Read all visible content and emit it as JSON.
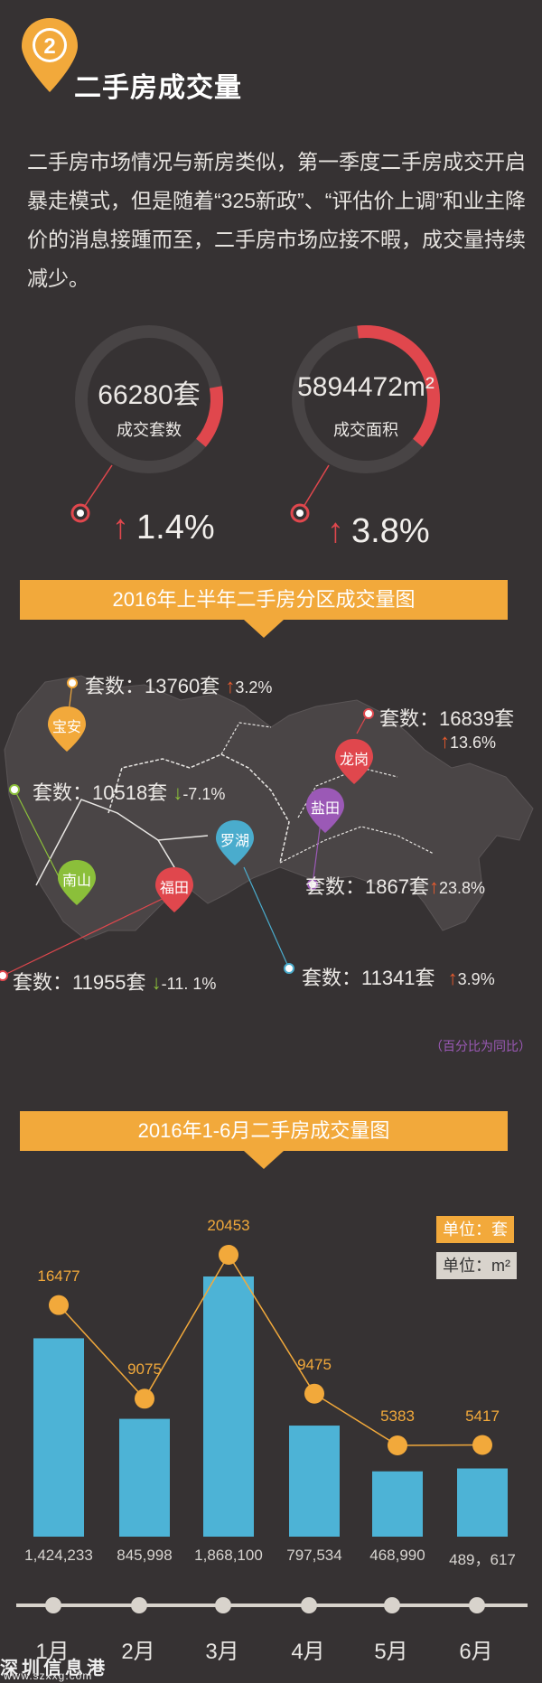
{
  "header": {
    "badge_number": "2",
    "title": "二手房成交量"
  },
  "intro": "二手房市场情况与新房类似，第一季度二手房成交开启暴走模式，但是随着“325新政”、“评估价上调”和业主降价的消息接踵而至，二手房市场应接不暇，成交量持续减少。",
  "stats": [
    {
      "value": "66280套",
      "label": "成交套数",
      "growth": "1.4%",
      "ring_fill": 0.014
    },
    {
      "value": "5894472m²",
      "label": "成交面积",
      "growth": "3.8%",
      "ring_fill": 0.038
    }
  ],
  "district_section": {
    "banner": "2016年上半年二手房分区成交量图",
    "districts": [
      {
        "name": "宝安",
        "stat": "套数：13760套",
        "arrow": "↑",
        "pct": "3.2%",
        "trend": "up",
        "color": "#f2a93b"
      },
      {
        "name": "龙岗",
        "stat": "套数：16839套",
        "arrow": "↑",
        "pct": "13.6%",
        "trend": "up",
        "color": "#e0474d"
      },
      {
        "name": "宝安-南山",
        "stat": "套数：10518套",
        "arrow": "↓",
        "pct": "-7.1%",
        "trend": "down",
        "color": "#8bbf3a"
      },
      {
        "name": "盐田",
        "stat": "套数：1867套",
        "arrow": "↑",
        "pct": "23.8%",
        "trend": "up",
        "color": "#9b59b6"
      },
      {
        "name": "福田",
        "stat": "套数：11955套",
        "arrow": "↓",
        "pct": "-11. 1%",
        "trend": "down",
        "color": "#e0474d"
      },
      {
        "name": "罗湖",
        "stat": "套数：11341套",
        "arrow": "↑",
        "pct": "3.9%",
        "trend": "up",
        "color": "#4aaccd"
      }
    ],
    "pin_labels": {
      "baoan": "宝安",
      "longgang": "龙岗",
      "yantian": "盐田",
      "luohu": "罗湖",
      "nanshan": "南山",
      "futian": "福田"
    },
    "note": "（百分比为同比）"
  },
  "monthly_section": {
    "banner": "2016年1-6月二手房成交量图",
    "unit_count": "单位：套",
    "unit_area": "单位：m²"
  },
  "chart_data": {
    "type": "bar",
    "title": "2016年1-6月二手房成交量图",
    "categories": [
      "1月",
      "2月",
      "3月",
      "4月",
      "5月",
      "6月"
    ],
    "series": [
      {
        "name": "单位：m²",
        "type": "bar",
        "values": [
          1424233,
          845998,
          1868100,
          797534,
          468990,
          489617
        ],
        "labels": [
          "1,424,233",
          "845,998",
          "1,868,100",
          "797,534",
          "468,990",
          "489，617"
        ],
        "color": "#4db3d6"
      },
      {
        "name": "单位：套",
        "type": "line",
        "values": [
          16477,
          9075,
          20453,
          9475,
          5383,
          5417
        ],
        "labels": [
          "16477",
          "9075",
          "20453",
          "9475",
          "5383",
          "5417"
        ],
        "color": "#f2a93b"
      }
    ]
  },
  "watermark": {
    "text": "深圳信息港",
    "url": "www.szxxg.com"
  }
}
